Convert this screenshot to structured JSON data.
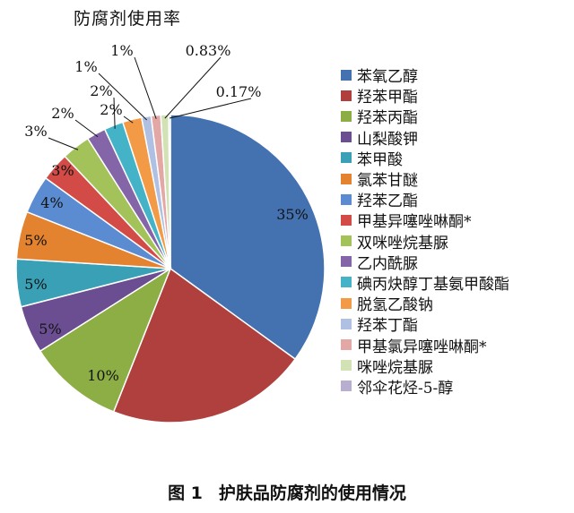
{
  "chart_data": {
    "type": "pie",
    "title": "防腐剂使用率",
    "legend_position": "right",
    "series": [
      {
        "name": "苯氧乙醇",
        "value": 35,
        "label": "35%",
        "color": "#4471B0"
      },
      {
        "name": "羟苯甲酯",
        "value": 21,
        "label": "",
        "color": "#B0403E"
      },
      {
        "name": "羟苯丙酯",
        "value": 10,
        "label": "10%",
        "color": "#8CAE45"
      },
      {
        "name": "山梨酸钾",
        "value": 5,
        "label": "5%",
        "color": "#6B4E91"
      },
      {
        "name": "苯甲酸",
        "value": 5,
        "label": "5%",
        "color": "#3AA0B6"
      },
      {
        "name": "氯苯甘醚",
        "value": 5,
        "label": "5%",
        "color": "#E3822F"
      },
      {
        "name": "羟苯乙酯",
        "value": 4,
        "label": "4%",
        "color": "#5B8BD0"
      },
      {
        "name": "甲基异噻唑啉酮*",
        "value": 3,
        "label": "3%",
        "color": "#D24B46"
      },
      {
        "name": "双咪唑烷基脲",
        "value": 3,
        "label": "3%",
        "color": "#A3C35A"
      },
      {
        "name": "乙内酰脲",
        "value": 2,
        "label": "2%",
        "color": "#8465A8"
      },
      {
        "name": "碘丙炔醇丁基氨甲酸酯",
        "value": 2,
        "label": "2%",
        "color": "#45B3C7"
      },
      {
        "name": "脱氢乙酸钠",
        "value": 2,
        "label": "2%",
        "color": "#F29A46"
      },
      {
        "name": "羟苯丁酯",
        "value": 1,
        "label": "1%",
        "color": "#AFC0E2"
      },
      {
        "name": "甲基氯异噻唑啉酮*",
        "value": 1,
        "label": "1%",
        "color": "#E3A8A6"
      },
      {
        "name": "咪唑烷基脲",
        "value": 0.83,
        "label": "0.83%",
        "color": "#D2E2B4"
      },
      {
        "name": "邻伞花烃-5-醇",
        "value": 0.17,
        "label": "0.17%",
        "color": "#B8AECF"
      }
    ]
  },
  "caption": {
    "number": "图 1",
    "text": "护肤品防腐剂的使用情况"
  }
}
